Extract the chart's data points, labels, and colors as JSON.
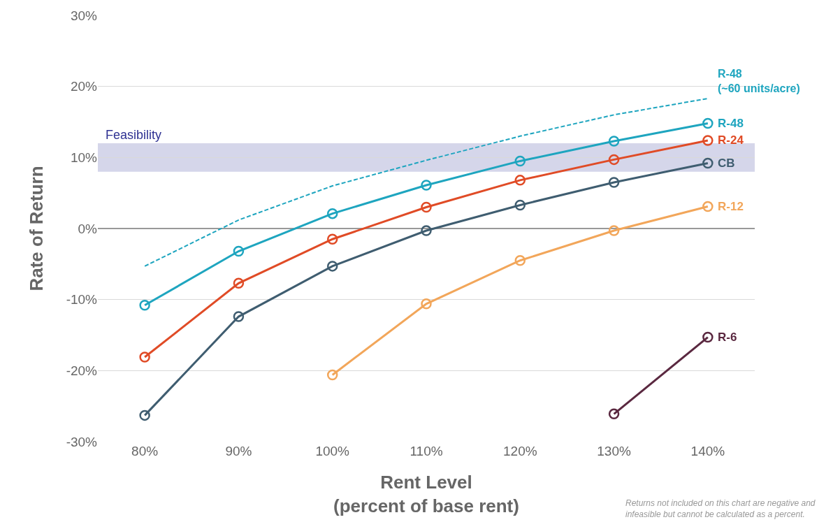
{
  "chart_data": {
    "type": "line",
    "xlabel": "Rent Level\n(percent of base rent)",
    "ylabel": "Rate of Return",
    "x": [
      80,
      90,
      100,
      110,
      120,
      130,
      140
    ],
    "series": [
      {
        "name": "R-48\n(~60 units/acre)",
        "color": "#1ea5bf",
        "values": [
          -5.3,
          1.2,
          6,
          9.6,
          13,
          16,
          18.3
        ],
        "line_style": "dashed",
        "marker": "none"
      },
      {
        "name": "R-48",
        "color": "#1ea5bf",
        "values": [
          -10.8,
          -3.2,
          2.1,
          6.1,
          9.5,
          12.3,
          14.8
        ]
      },
      {
        "name": "R-24",
        "color": "#e04b26",
        "values": [
          -18.1,
          -7.7,
          -1.5,
          3.0,
          6.8,
          9.7,
          12.4
        ]
      },
      {
        "name": "CB",
        "color": "#3f5d70",
        "values": [
          -26.3,
          -12.4,
          -5.3,
          -0.3,
          3.3,
          6.5,
          9.2
        ]
      },
      {
        "name": "R-12",
        "color": "#f2a65a",
        "values": [
          null,
          null,
          -20.6,
          -10.6,
          -4.5,
          -0.3,
          3.1
        ]
      },
      {
        "name": "R-6",
        "color": "#5a2840",
        "values": [
          null,
          null,
          null,
          null,
          null,
          -26.1,
          -15.3
        ]
      }
    ],
    "xlim": [
      75,
      145
    ],
    "xticks": [
      {
        "value": 80,
        "label": "80%"
      },
      {
        "value": 90,
        "label": "90%"
      },
      {
        "value": 100,
        "label": "100%"
      },
      {
        "value": 110,
        "label": "110%"
      },
      {
        "value": 120,
        "label": "120%"
      },
      {
        "value": 130,
        "label": "130%"
      },
      {
        "value": 140,
        "label": "140%"
      }
    ],
    "ylim": [
      -30,
      30
    ],
    "yticks": [
      {
        "value": -30,
        "label": "-30%"
      },
      {
        "value": -20,
        "label": "-20%"
      },
      {
        "value": -10,
        "label": "-10%"
      },
      {
        "value": 0,
        "label": "0%"
      },
      {
        "value": 10,
        "label": "10%"
      },
      {
        "value": 20,
        "label": "20%"
      },
      {
        "value": 30,
        "label": "30%"
      }
    ],
    "bands": [
      {
        "axis": "y",
        "from": 8,
        "to": 12,
        "label": "Feasibility",
        "color": "#d5d6ea"
      }
    ],
    "annotations": [
      "Returns not included on this chart are negative and\ninfeasible but cannot be calculated as a percent."
    ],
    "grid": "y",
    "legend": false,
    "marker": "circle",
    "line_style": "solid"
  }
}
